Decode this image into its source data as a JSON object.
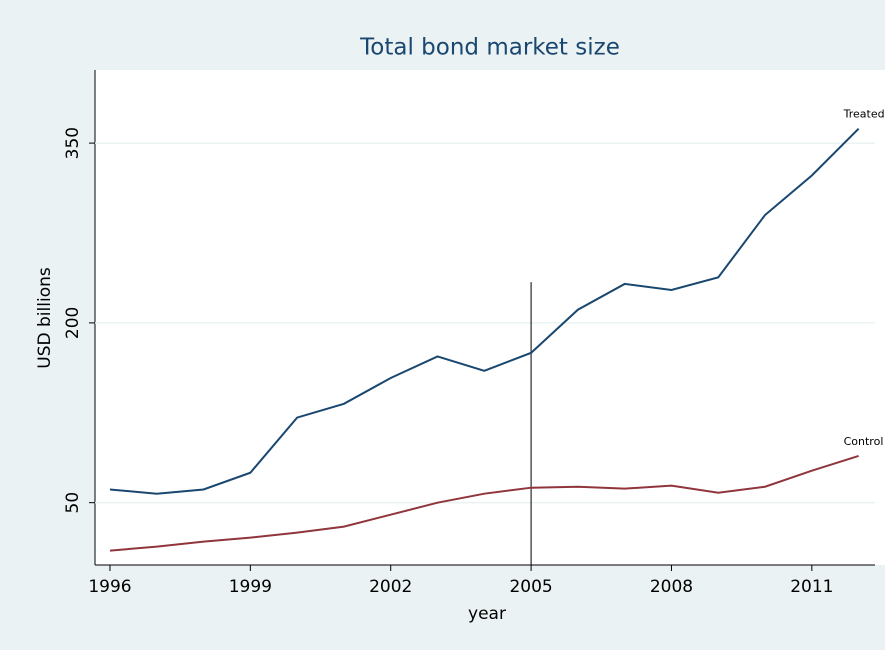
{
  "chart_data": {
    "type": "line",
    "title": "Total bond market size",
    "x_label": "year",
    "y_label": "USD billions",
    "x": [
      1996,
      1997,
      1998,
      1999,
      2000,
      2001,
      2002,
      2003,
      2004,
      2005,
      2006,
      2007,
      2008,
      2009,
      2010,
      2011,
      2012
    ],
    "series": [
      {
        "name": "Treated",
        "color": "#1a476f",
        "values": [
          61,
          57.5,
          61,
          75,
          121,
          132.5,
          154,
          172,
          160,
          175,
          211,
          232.5,
          227.5,
          238,
          290,
          323,
          362
        ]
      },
      {
        "name": "Control",
        "color": "#90353b",
        "values": [
          10,
          13.3,
          17.5,
          20.8,
          25,
          30,
          40,
          50,
          57.5,
          62.5,
          63.3,
          61.7,
          64.2,
          58.3,
          63.3,
          76.7,
          89
        ]
      }
    ],
    "vline": {
      "x": 2005,
      "ymax": 234
    },
    "xlim": [
      1995.68,
      2012.35
    ],
    "ylim": [
      -2,
      411
    ],
    "xticks": [
      1996,
      1999,
      2002,
      2005,
      2008,
      2011
    ],
    "yticks": [
      50,
      200,
      350
    ],
    "grid": true
  }
}
